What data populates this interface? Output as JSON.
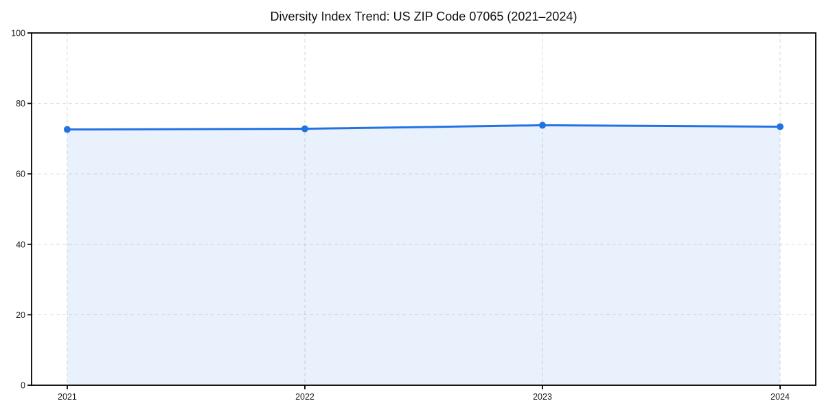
{
  "chart_data": {
    "type": "line",
    "title": "Diversity Index Trend: US ZIP Code 07065 (2021–2024)",
    "categories": [
      "2021",
      "2022",
      "2023",
      "2024"
    ],
    "values": [
      72.6,
      72.8,
      73.8,
      73.4
    ],
    "xlabel": "",
    "ylabel": "",
    "ylim": [
      0,
      100
    ],
    "yticks": [
      0,
      20,
      40,
      60,
      80,
      100
    ],
    "grid": true,
    "grid_style": "dashed",
    "legend_position": "none",
    "area_fill": true,
    "marker": "circle",
    "colors": {
      "line": "#2272e3",
      "area_fill": "rgba(34,114,227,0.10)",
      "grid": "#d9d9d9",
      "axis": "#000000",
      "tick_text": "#1a1a1a",
      "title_text": "#111111",
      "background": "#ffffff"
    }
  }
}
